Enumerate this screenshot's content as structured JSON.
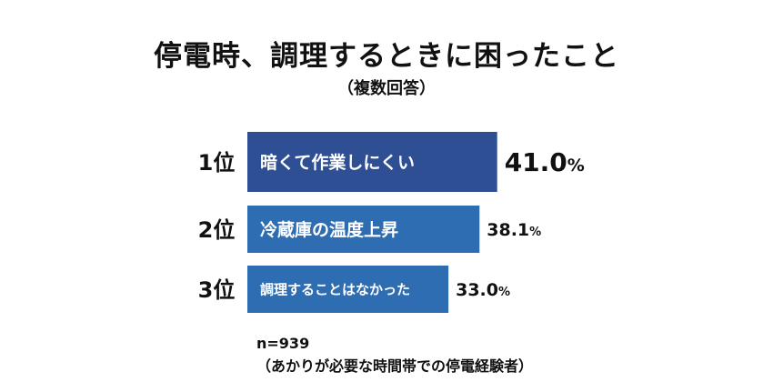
{
  "chart_data": {
    "type": "bar",
    "orientation": "horizontal",
    "title": "停電時、調理するときに困ったこと",
    "subtitle": "（複数回答）",
    "ranks": [
      "1位",
      "2位",
      "3位"
    ],
    "categories": [
      "暗くて作業しにくい",
      "冷蔵庫の温度上昇",
      "調理することはなかった"
    ],
    "values": [
      41.0,
      38.1,
      33.0
    ],
    "value_labels": [
      "41.0",
      "38.1",
      "33.0"
    ],
    "unit": "%",
    "bar_colors": [
      "#2e4f94",
      "#2f6db3",
      "#2f6db3"
    ],
    "legend": "none",
    "grid": false
  },
  "footnote": {
    "n": "n=939",
    "population": "（あかりが必要な時間帯での停電経験者）"
  }
}
